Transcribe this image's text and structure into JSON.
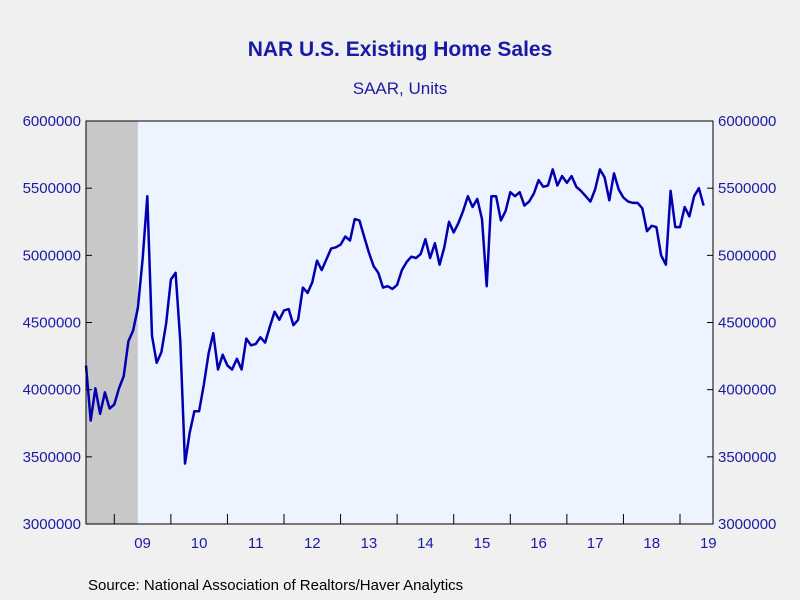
{
  "chart_data": {
    "type": "line",
    "title": "NAR U.S. Existing Home Sales",
    "subtitle": "SAAR, Units",
    "source": "Source:  National Association of Realtors/Haver Analytics",
    "ylim": [
      3000000,
      6000000
    ],
    "y_ticks": [
      3000000,
      3500000,
      4000000,
      4500000,
      5000000,
      5500000,
      6000000
    ],
    "y_tick_labels": [
      "3000000",
      "3500000",
      "4000000",
      "4500000",
      "5000000",
      "5500000",
      "6000000"
    ],
    "x_range": [
      "2008-07",
      "2019-08"
    ],
    "x_tick_labels": [
      "09",
      "10",
      "11",
      "12",
      "13",
      "14",
      "15",
      "16",
      "17",
      "18",
      "19"
    ],
    "recession_shading": [
      "2008-07",
      "2009-06"
    ],
    "colors": {
      "line": "#0000b0",
      "plot_background": "#eef4ff",
      "recession": "#c8c8c8",
      "text": "#1a1aa6"
    },
    "series": [
      {
        "values": [
          [
            "2008-07",
            4180000
          ],
          [
            "2008-08",
            3770000
          ],
          [
            "2008-09",
            4010000
          ],
          [
            "2008-10",
            3820000
          ],
          [
            "2008-11",
            3980000
          ],
          [
            "2008-12",
            3860000
          ],
          [
            "2009-01",
            3890000
          ],
          [
            "2009-02",
            4010000
          ],
          [
            "2009-03",
            4100000
          ],
          [
            "2009-04",
            4360000
          ],
          [
            "2009-05",
            4440000
          ],
          [
            "2009-06",
            4610000
          ],
          [
            "2009-07",
            4970000
          ],
          [
            "2009-08",
            5440000
          ],
          [
            "2009-09",
            4400000
          ],
          [
            "2009-10",
            4200000
          ],
          [
            "2009-11",
            4280000
          ],
          [
            "2009-12",
            4490000
          ],
          [
            "2010-01",
            4820000
          ],
          [
            "2010-02",
            4870000
          ],
          [
            "2010-03",
            4360000
          ],
          [
            "2010-04",
            3450000
          ],
          [
            "2010-05",
            3680000
          ],
          [
            "2010-06",
            3840000
          ],
          [
            "2010-07",
            3840000
          ],
          [
            "2010-08",
            4040000
          ],
          [
            "2010-09",
            4270000
          ],
          [
            "2010-10",
            4420000
          ],
          [
            "2010-11",
            4150000
          ],
          [
            "2010-12",
            4260000
          ],
          [
            "2011-01",
            4180000
          ],
          [
            "2011-02",
            4150000
          ],
          [
            "2011-03",
            4230000
          ],
          [
            "2011-04",
            4150000
          ],
          [
            "2011-05",
            4380000
          ],
          [
            "2011-06",
            4330000
          ],
          [
            "2011-07",
            4340000
          ],
          [
            "2011-08",
            4390000
          ],
          [
            "2011-09",
            4350000
          ],
          [
            "2011-10",
            4470000
          ],
          [
            "2011-11",
            4580000
          ],
          [
            "2011-12",
            4520000
          ],
          [
            "2012-01",
            4590000
          ],
          [
            "2012-02",
            4600000
          ],
          [
            "2012-03",
            4480000
          ],
          [
            "2012-04",
            4520000
          ],
          [
            "2012-05",
            4760000
          ],
          [
            "2012-06",
            4720000
          ],
          [
            "2012-07",
            4800000
          ],
          [
            "2012-08",
            4960000
          ],
          [
            "2012-09",
            4890000
          ],
          [
            "2012-10",
            4970000
          ],
          [
            "2012-11",
            5050000
          ],
          [
            "2012-12",
            5060000
          ],
          [
            "2013-01",
            5080000
          ],
          [
            "2013-02",
            5140000
          ],
          [
            "2013-03",
            5110000
          ],
          [
            "2013-04",
            5270000
          ],
          [
            "2013-05",
            5260000
          ],
          [
            "2013-06",
            5140000
          ],
          [
            "2013-07",
            5020000
          ],
          [
            "2013-08",
            4920000
          ],
          [
            "2013-09",
            4870000
          ],
          [
            "2013-10",
            4760000
          ],
          [
            "2013-11",
            4770000
          ],
          [
            "2013-12",
            4750000
          ],
          [
            "2014-01",
            4780000
          ],
          [
            "2014-02",
            4890000
          ],
          [
            "2014-03",
            4950000
          ],
          [
            "2014-04",
            4990000
          ],
          [
            "2014-05",
            4980000
          ],
          [
            "2014-06",
            5010000
          ],
          [
            "2014-07",
            5120000
          ],
          [
            "2014-08",
            4980000
          ],
          [
            "2014-09",
            5090000
          ],
          [
            "2014-10",
            4930000
          ],
          [
            "2014-11",
            5060000
          ],
          [
            "2014-12",
            5250000
          ],
          [
            "2015-01",
            5170000
          ],
          [
            "2015-02",
            5240000
          ],
          [
            "2015-03",
            5330000
          ],
          [
            "2015-04",
            5440000
          ],
          [
            "2015-05",
            5360000
          ],
          [
            "2015-06",
            5420000
          ],
          [
            "2015-07",
            5270000
          ],
          [
            "2015-08",
            4770000
          ],
          [
            "2015-09",
            5440000
          ],
          [
            "2015-10",
            5440000
          ],
          [
            "2015-11",
            5260000
          ],
          [
            "2015-12",
            5330000
          ],
          [
            "2016-01",
            5470000
          ],
          [
            "2016-02",
            5440000
          ],
          [
            "2016-03",
            5470000
          ],
          [
            "2016-04",
            5370000
          ],
          [
            "2016-05",
            5400000
          ],
          [
            "2016-06",
            5460000
          ],
          [
            "2016-07",
            5560000
          ],
          [
            "2016-08",
            5510000
          ],
          [
            "2016-09",
            5520000
          ],
          [
            "2016-10",
            5640000
          ],
          [
            "2016-11",
            5520000
          ],
          [
            "2016-12",
            5590000
          ],
          [
            "2017-01",
            5540000
          ],
          [
            "2017-02",
            5590000
          ],
          [
            "2017-03",
            5510000
          ],
          [
            "2017-04",
            5480000
          ],
          [
            "2017-05",
            5440000
          ],
          [
            "2017-06",
            5400000
          ],
          [
            "2017-07",
            5490000
          ],
          [
            "2017-08",
            5640000
          ],
          [
            "2017-09",
            5580000
          ],
          [
            "2017-10",
            5410000
          ],
          [
            "2017-11",
            5610000
          ],
          [
            "2017-12",
            5490000
          ],
          [
            "2018-01",
            5430000
          ],
          [
            "2018-02",
            5400000
          ],
          [
            "2018-03",
            5390000
          ],
          [
            "2018-04",
            5390000
          ],
          [
            "2018-05",
            5350000
          ],
          [
            "2018-06",
            5180000
          ],
          [
            "2018-07",
            5220000
          ],
          [
            "2018-08",
            5210000
          ],
          [
            "2018-09",
            5000000
          ],
          [
            "2018-10",
            4930000
          ],
          [
            "2018-11",
            5480000
          ],
          [
            "2018-12",
            5210000
          ],
          [
            "2019-01",
            5210000
          ],
          [
            "2019-02",
            5360000
          ],
          [
            "2019-03",
            5290000
          ],
          [
            "2019-04",
            5440000
          ],
          [
            "2019-05",
            5500000
          ],
          [
            "2019-06",
            5370000
          ]
        ]
      }
    ]
  }
}
